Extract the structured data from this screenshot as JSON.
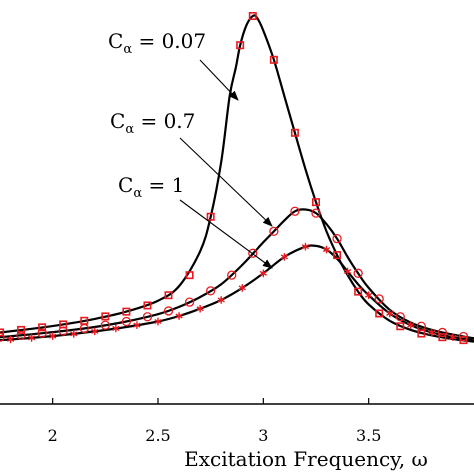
{
  "chart_data": {
    "type": "line",
    "xlabel": "Excitation Frequency, ω",
    "ylabel": "",
    "xlim": [
      1.75,
      4.0
    ],
    "ylim": [
      0,
      1
    ],
    "x_ticks": [
      2,
      2.5,
      3,
      3.5
    ],
    "x_tick_labels": [
      "2",
      "2.5",
      "3",
      "3.5"
    ],
    "colors": {
      "curve": "#000000",
      "marker": "#e8191f"
    },
    "series": [
      {
        "name": "C_α = 0.07",
        "annotation": {
          "main": "C",
          "sub": "α",
          "rest": " = 0.07"
        },
        "marker": "square",
        "line": [
          [
            1.75,
            0.133
          ],
          [
            1.9,
            0.143
          ],
          [
            2.05,
            0.155
          ],
          [
            2.2,
            0.17
          ],
          [
            2.35,
            0.19
          ],
          [
            2.5,
            0.22
          ],
          [
            2.6,
            0.26
          ],
          [
            2.7,
            0.355
          ],
          [
            2.75,
            0.45
          ],
          [
            2.8,
            0.6
          ],
          [
            2.84,
            0.78
          ],
          [
            2.87,
            0.86
          ],
          [
            2.89,
            0.92
          ],
          [
            2.92,
            0.975
          ],
          [
            2.95,
            1.0
          ],
          [
            2.97,
            0.995
          ],
          [
            3.0,
            0.96
          ],
          [
            3.05,
            0.88
          ],
          [
            3.1,
            0.78
          ],
          [
            3.15,
            0.68
          ],
          [
            3.2,
            0.58
          ],
          [
            3.25,
            0.49
          ],
          [
            3.3,
            0.41
          ],
          [
            3.35,
            0.345
          ],
          [
            3.4,
            0.29
          ],
          [
            3.45,
            0.245
          ],
          [
            3.5,
            0.21
          ],
          [
            3.6,
            0.165
          ],
          [
            3.7,
            0.14
          ],
          [
            3.8,
            0.125
          ],
          [
            3.9,
            0.115
          ],
          [
            4.0,
            0.108
          ]
        ],
        "markers": [
          [
            1.75,
            0.133
          ],
          [
            1.85,
            0.14
          ],
          [
            1.95,
            0.147
          ],
          [
            2.05,
            0.155
          ],
          [
            2.15,
            0.165
          ],
          [
            2.25,
            0.177
          ],
          [
            2.35,
            0.19
          ],
          [
            2.45,
            0.207
          ],
          [
            2.55,
            0.235
          ],
          [
            2.65,
            0.29
          ],
          [
            2.75,
            0.45
          ],
          [
            2.89,
            0.92
          ],
          [
            2.95,
            1.0
          ],
          [
            3.05,
            0.88
          ],
          [
            3.15,
            0.68
          ],
          [
            3.25,
            0.49
          ],
          [
            3.35,
            0.345
          ],
          [
            3.45,
            0.245
          ],
          [
            3.55,
            0.185
          ],
          [
            3.65,
            0.15
          ],
          [
            3.75,
            0.13
          ],
          [
            3.85,
            0.12
          ],
          [
            3.95,
            0.112
          ]
        ]
      },
      {
        "name": "C_α = 0.7",
        "annotation": {
          "main": "C",
          "sub": "α",
          "rest": " = 0.7"
        },
        "marker": "circle",
        "line": [
          [
            1.75,
            0.12
          ],
          [
            1.9,
            0.128
          ],
          [
            2.05,
            0.137
          ],
          [
            2.2,
            0.148
          ],
          [
            2.35,
            0.163
          ],
          [
            2.5,
            0.183
          ],
          [
            2.6,
            0.203
          ],
          [
            2.7,
            0.23
          ],
          [
            2.8,
            0.265
          ],
          [
            2.9,
            0.318
          ],
          [
            3.0,
            0.38
          ],
          [
            3.05,
            0.41
          ],
          [
            3.1,
            0.44
          ],
          [
            3.15,
            0.465
          ],
          [
            3.2,
            0.47
          ],
          [
            3.25,
            0.46
          ],
          [
            3.3,
            0.43
          ],
          [
            3.35,
            0.39
          ],
          [
            3.4,
            0.34
          ],
          [
            3.45,
            0.295
          ],
          [
            3.5,
            0.255
          ],
          [
            3.6,
            0.195
          ],
          [
            3.7,
            0.16
          ],
          [
            3.8,
            0.14
          ],
          [
            3.9,
            0.127
          ],
          [
            4.0,
            0.117
          ]
        ],
        "markers": [
          [
            1.75,
            0.12
          ],
          [
            1.85,
            0.125
          ],
          [
            1.95,
            0.131
          ],
          [
            2.05,
            0.137
          ],
          [
            2.15,
            0.144
          ],
          [
            2.25,
            0.153
          ],
          [
            2.35,
            0.163
          ],
          [
            2.45,
            0.176
          ],
          [
            2.55,
            0.192
          ],
          [
            2.65,
            0.216
          ],
          [
            2.75,
            0.247
          ],
          [
            2.85,
            0.29
          ],
          [
            2.95,
            0.35
          ],
          [
            3.05,
            0.41
          ],
          [
            3.15,
            0.465
          ],
          [
            3.25,
            0.46
          ],
          [
            3.35,
            0.39
          ],
          [
            3.45,
            0.295
          ],
          [
            3.55,
            0.225
          ],
          [
            3.65,
            0.176
          ],
          [
            3.75,
            0.15
          ],
          [
            3.85,
            0.133
          ],
          [
            3.95,
            0.122
          ]
        ]
      },
      {
        "name": "C_α = 1",
        "annotation": {
          "main": "C",
          "sub": "α",
          "rest": " = 1"
        },
        "marker": "asterisk",
        "line": [
          [
            1.75,
            0.112
          ],
          [
            1.9,
            0.118
          ],
          [
            2.05,
            0.126
          ],
          [
            2.2,
            0.136
          ],
          [
            2.35,
            0.148
          ],
          [
            2.5,
            0.163
          ],
          [
            2.6,
            0.178
          ],
          [
            2.7,
            0.198
          ],
          [
            2.8,
            0.222
          ],
          [
            2.9,
            0.255
          ],
          [
            3.0,
            0.295
          ],
          [
            3.1,
            0.34
          ],
          [
            3.2,
            0.368
          ],
          [
            3.25,
            0.37
          ],
          [
            3.3,
            0.36
          ],
          [
            3.35,
            0.335
          ],
          [
            3.4,
            0.3
          ],
          [
            3.45,
            0.265
          ],
          [
            3.5,
            0.235
          ],
          [
            3.6,
            0.185
          ],
          [
            3.7,
            0.153
          ],
          [
            3.8,
            0.133
          ],
          [
            3.9,
            0.12
          ],
          [
            4.0,
            0.111
          ]
        ],
        "markers": [
          [
            1.8,
            0.114
          ],
          [
            1.9,
            0.118
          ],
          [
            2.0,
            0.123
          ],
          [
            2.1,
            0.129
          ],
          [
            2.2,
            0.136
          ],
          [
            2.3,
            0.144
          ],
          [
            2.4,
            0.153
          ],
          [
            2.5,
            0.163
          ],
          [
            2.6,
            0.178
          ],
          [
            2.7,
            0.198
          ],
          [
            2.8,
            0.222
          ],
          [
            2.9,
            0.255
          ],
          [
            3.0,
            0.295
          ],
          [
            3.1,
            0.34
          ],
          [
            3.2,
            0.368
          ],
          [
            3.3,
            0.36
          ],
          [
            3.4,
            0.3
          ],
          [
            3.5,
            0.235
          ],
          [
            3.6,
            0.185
          ],
          [
            3.7,
            0.153
          ],
          [
            3.8,
            0.133
          ],
          [
            3.9,
            0.12
          ]
        ]
      }
    ]
  }
}
